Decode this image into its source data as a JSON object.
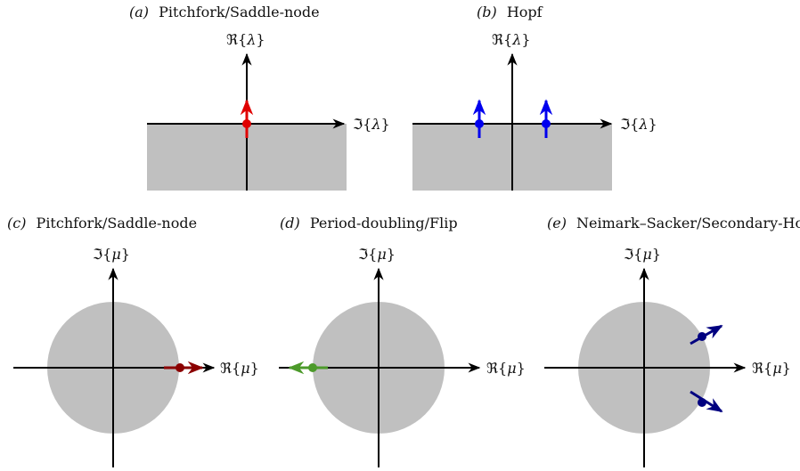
{
  "figure": {
    "colors": {
      "shade": "#c0c0c0",
      "axis": "#000000",
      "red": "#e00000",
      "blue": "#0000ee",
      "darkred": "#8b0000",
      "green": "#4c9a2a",
      "navy": "#000080"
    },
    "panels": {
      "a": {
        "tag": "(a)",
        "title": "Pitchfork/Saddle-node",
        "vertical_axis": {
          "sym": "ℜ",
          "open": "{",
          "var": "λ",
          "close": "}"
        },
        "horizontal_axis": {
          "sym": "ℑ",
          "open": "{",
          "var": "λ",
          "close": "}"
        }
      },
      "b": {
        "tag": "(b)",
        "title": "Hopf",
        "vertical_axis": {
          "sym": "ℜ",
          "open": "{",
          "var": "λ",
          "close": "}"
        },
        "horizontal_axis": {
          "sym": "ℑ",
          "open": "{",
          "var": "λ",
          "close": "}"
        }
      },
      "c": {
        "tag": "(c)",
        "title": "Pitchfork/Saddle-node",
        "vertical_axis": {
          "sym": "ℑ",
          "open": "{",
          "var": "μ",
          "close": "}"
        },
        "horizontal_axis": {
          "sym": "ℜ",
          "open": "{",
          "var": "μ",
          "close": "}"
        }
      },
      "d": {
        "tag": "(d)",
        "title": "Period-doubling/Flip",
        "vertical_axis": {
          "sym": "ℑ",
          "open": "{",
          "var": "μ",
          "close": "}"
        },
        "horizontal_axis": {
          "sym": "ℜ",
          "open": "{",
          "var": "μ",
          "close": "}"
        }
      },
      "e": {
        "tag": "(e)",
        "title": "Neimark–Sacker/Secondary-Hopf",
        "vertical_axis": {
          "sym": "ℑ",
          "open": "{",
          "var": "μ",
          "close": "}"
        },
        "horizontal_axis": {
          "sym": "ℜ",
          "open": "{",
          "var": "μ",
          "close": "}"
        }
      }
    }
  }
}
